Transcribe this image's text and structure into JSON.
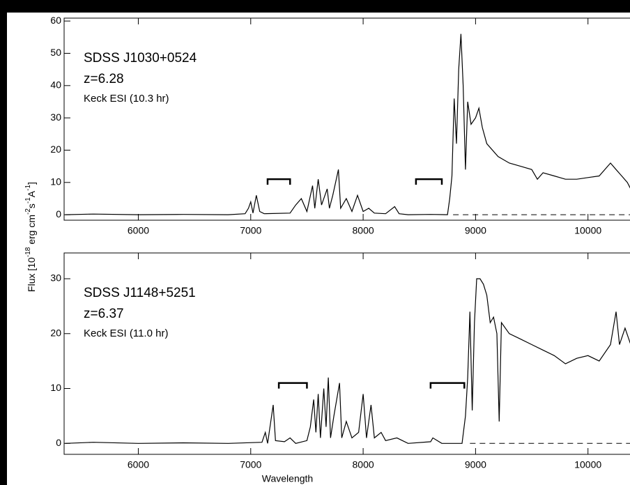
{
  "chart_data": [
    {
      "type": "line",
      "color": "#000000",
      "annotations": [
        "SDSS J1030+0524",
        "z=6.28",
        "Keck ESI (10.3 hr)"
      ],
      "ylabel_parts": [
        {
          "text": "Flux [10"
        },
        {
          "text": "-18",
          "sup": true
        },
        {
          "text": " erg cm"
        },
        {
          "text": "-2",
          "sup": true
        },
        {
          "text": "s"
        },
        {
          "text": "-1",
          "sup": true
        },
        {
          "text": "A"
        },
        {
          "text": "-1",
          "sup": true
        },
        {
          "text": "]"
        }
      ],
      "xlim": [
        5340,
        10380
      ],
      "ylim": [
        -1.7,
        60.9
      ],
      "xticks": [
        6000,
        7000,
        8000,
        9000,
        10000
      ],
      "yticks": [
        0,
        10,
        20,
        30,
        40,
        50,
        60
      ],
      "zero_line_from": 8800,
      "brackets": [
        {
          "from": 7150,
          "to": 7350,
          "height": 11
        },
        {
          "from": 8470,
          "to": 8700,
          "height": 11
        }
      ],
      "x": [
        5350,
        5600,
        6000,
        6400,
        6800,
        6950,
        6980,
        7000,
        7020,
        7050,
        7080,
        7120,
        7350,
        7400,
        7450,
        7500,
        7550,
        7570,
        7600,
        7630,
        7680,
        7700,
        7730,
        7780,
        7800,
        7850,
        7900,
        7950,
        8000,
        8050,
        8100,
        8200,
        8280,
        8320,
        8400,
        8600,
        8750,
        8770,
        8790,
        8810,
        8830,
        8850,
        8870,
        8890,
        8910,
        8930,
        8960,
        9000,
        9030,
        9060,
        9100,
        9200,
        9300,
        9400,
        9500,
        9550,
        9600,
        9700,
        9800,
        9900,
        10000,
        10100,
        10200,
        10250,
        10300,
        10350,
        10380
      ],
      "values": [
        0,
        0.2,
        0,
        0.1,
        0,
        0.3,
        2,
        4,
        0.5,
        6,
        1,
        0.3,
        0.5,
        3,
        5,
        1,
        9,
        2,
        11,
        3,
        8,
        2,
        6,
        14,
        2,
        5,
        1,
        6,
        1,
        2,
        0.5,
        0.3,
        2.5,
        0.3,
        0,
        0.1,
        0,
        5,
        12,
        36,
        22,
        45,
        56,
        40,
        14,
        35,
        28,
        30,
        33,
        27,
        22,
        18,
        16,
        15,
        14,
        11,
        13,
        12,
        11,
        11,
        11.5,
        12,
        16,
        14,
        12,
        10,
        8
      ]
    },
    {
      "type": "line",
      "color": "#000000",
      "annotations": [
        "SDSS J1148+5251",
        "z=6.37",
        "Keck ESI (11.0 hr)"
      ],
      "xlabel": "Wavelength",
      "xlim": [
        5340,
        10380
      ],
      "ylim": [
        -2,
        34.7
      ],
      "xticks": [
        6000,
        7000,
        8000,
        9000,
        10000
      ],
      "yticks": [
        0,
        10,
        20,
        30
      ],
      "zero_line_from": 8950,
      "brackets": [
        {
          "from": 7250,
          "to": 7500,
          "height": 11
        },
        {
          "from": 8600,
          "to": 8900,
          "height": 11
        }
      ],
      "x": [
        5350,
        5600,
        6000,
        6400,
        6800,
        7100,
        7130,
        7150,
        7200,
        7220,
        7300,
        7350,
        7400,
        7500,
        7530,
        7560,
        7580,
        7600,
        7620,
        7650,
        7670,
        7690,
        7710,
        7740,
        7790,
        7810,
        7850,
        7900,
        7960,
        8000,
        8030,
        8070,
        8100,
        8160,
        8200,
        8300,
        8400,
        8600,
        8620,
        8700,
        8880,
        8910,
        8930,
        8950,
        8970,
        8990,
        9010,
        9040,
        9070,
        9100,
        9130,
        9160,
        9190,
        9210,
        9230,
        9300,
        9400,
        9500,
        9600,
        9700,
        9800,
        9900,
        10000,
        10100,
        10200,
        10250,
        10280,
        10330,
        10380
      ],
      "values": [
        0,
        0.2,
        0,
        0.1,
        0,
        0.2,
        2,
        0,
        7,
        0.5,
        0.3,
        1,
        0,
        0.5,
        3,
        8,
        2,
        9,
        1,
        10,
        3,
        12,
        1,
        5,
        11,
        1,
        4,
        1,
        2,
        9,
        1,
        7,
        1,
        2,
        0.5,
        1,
        0,
        0.3,
        1,
        0,
        0,
        5,
        12,
        24,
        6,
        22,
        30,
        30,
        29,
        27,
        22,
        23,
        20,
        4,
        22,
        20,
        19,
        18,
        17,
        16,
        14.5,
        15.5,
        16,
        15,
        18,
        24,
        18,
        21,
        18
      ]
    }
  ]
}
